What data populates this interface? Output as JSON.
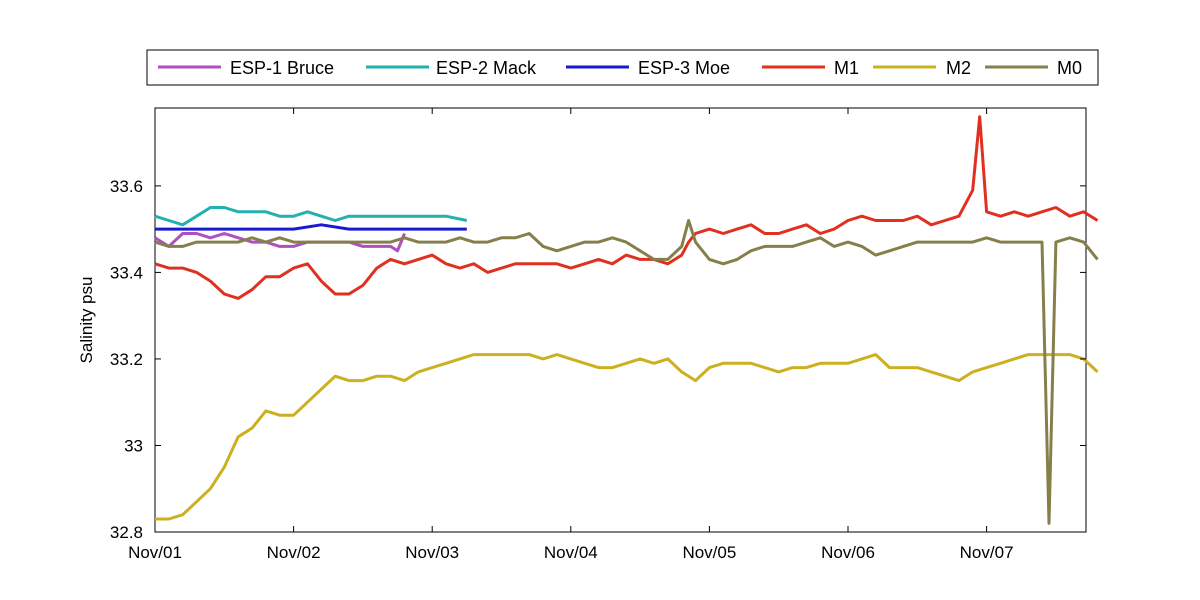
{
  "chart_data": {
    "type": "line",
    "title": "",
    "xlabel": "",
    "ylabel": "Salinity psu",
    "xlim": [
      "Nov/01",
      "Nov/07 ~19:00"
    ],
    "ylim": [
      32.8,
      33.78
    ],
    "x_tick_labels": [
      "Nov/01",
      "Nov/02",
      "Nov/03",
      "Nov/04",
      "Nov/05",
      "Nov/06",
      "Nov/07"
    ],
    "y_ticks": [
      32.8,
      33.0,
      33.2,
      33.4,
      33.6
    ],
    "y_tick_labels": [
      "32.8",
      "33",
      "33.2",
      "33.4",
      "33.6"
    ],
    "grid": false,
    "legend_position": "top, horizontal",
    "series": [
      {
        "name": "ESP-1 Bruce",
        "color": "#b04fc0",
        "x": [
          0.0,
          0.1,
          0.2,
          0.3,
          0.4,
          0.5,
          0.6,
          0.7,
          0.8,
          0.9,
          1.0,
          1.1,
          1.2,
          1.3,
          1.4,
          1.5,
          1.6,
          1.7,
          1.75,
          1.8
        ],
        "y": [
          33.48,
          33.46,
          33.49,
          33.49,
          33.48,
          33.49,
          33.48,
          33.47,
          33.47,
          33.46,
          33.46,
          33.47,
          33.47,
          33.47,
          33.47,
          33.46,
          33.46,
          33.46,
          33.45,
          33.49
        ]
      },
      {
        "name": "ESP-2 Mack",
        "color": "#22b0b0",
        "x": [
          0.0,
          0.1,
          0.2,
          0.3,
          0.4,
          0.5,
          0.6,
          0.7,
          0.8,
          0.9,
          1.0,
          1.1,
          1.2,
          1.3,
          1.4,
          1.5,
          1.6,
          1.7,
          1.8,
          1.9,
          2.0,
          2.1,
          2.25
        ],
        "y": [
          33.53,
          33.52,
          33.51,
          33.53,
          33.55,
          33.55,
          33.54,
          33.54,
          33.54,
          33.53,
          33.53,
          33.54,
          33.53,
          33.52,
          33.53,
          33.53,
          33.53,
          33.53,
          33.53,
          33.53,
          33.53,
          33.53,
          33.52
        ]
      },
      {
        "name": "ESP-3 Moe",
        "color": "#1a1ad0",
        "x": [
          0.0,
          0.2,
          0.4,
          0.6,
          0.8,
          1.0,
          1.2,
          1.4,
          1.6,
          1.8,
          2.0,
          2.25
        ],
        "y": [
          33.5,
          33.5,
          33.5,
          33.5,
          33.5,
          33.5,
          33.51,
          33.5,
          33.5,
          33.5,
          33.5,
          33.5
        ]
      },
      {
        "name": "M1",
        "color": "#e03020",
        "x": [
          0.0,
          0.1,
          0.2,
          0.3,
          0.4,
          0.5,
          0.6,
          0.7,
          0.8,
          0.9,
          1.0,
          1.1,
          1.2,
          1.3,
          1.4,
          1.5,
          1.6,
          1.7,
          1.8,
          1.9,
          2.0,
          2.1,
          2.2,
          2.3,
          2.4,
          2.5,
          2.6,
          2.7,
          2.8,
          2.9,
          3.0,
          3.1,
          3.2,
          3.3,
          3.4,
          3.5,
          3.6,
          3.7,
          3.8,
          3.85,
          3.9,
          4.0,
          4.1,
          4.2,
          4.3,
          4.4,
          4.5,
          4.6,
          4.7,
          4.8,
          4.9,
          5.0,
          5.1,
          5.2,
          5.3,
          5.4,
          5.5,
          5.6,
          5.7,
          5.8,
          5.9,
          5.95,
          6.0,
          6.1,
          6.2,
          6.3,
          6.4,
          6.5,
          6.6,
          6.7,
          6.8
        ],
        "y": [
          33.42,
          33.41,
          33.41,
          33.4,
          33.38,
          33.35,
          33.34,
          33.36,
          33.39,
          33.39,
          33.41,
          33.42,
          33.38,
          33.35,
          33.35,
          33.37,
          33.41,
          33.43,
          33.42,
          33.43,
          33.44,
          33.42,
          33.41,
          33.42,
          33.4,
          33.41,
          33.42,
          33.42,
          33.42,
          33.42,
          33.41,
          33.42,
          33.43,
          33.42,
          33.44,
          33.43,
          33.43,
          33.42,
          33.44,
          33.47,
          33.49,
          33.5,
          33.49,
          33.5,
          33.51,
          33.49,
          33.49,
          33.5,
          33.51,
          33.49,
          33.5,
          33.52,
          33.53,
          33.52,
          33.52,
          33.52,
          33.53,
          33.51,
          33.52,
          33.53,
          33.59,
          33.76,
          33.54,
          33.53,
          33.54,
          33.53,
          33.54,
          33.55,
          33.53,
          33.54,
          33.52
        ]
      },
      {
        "name": "M2",
        "color": "#ccb020",
        "x": [
          0.0,
          0.1,
          0.2,
          0.3,
          0.4,
          0.5,
          0.6,
          0.7,
          0.8,
          0.9,
          1.0,
          1.1,
          1.2,
          1.3,
          1.4,
          1.5,
          1.6,
          1.7,
          1.8,
          1.9,
          2.0,
          2.1,
          2.2,
          2.3,
          2.4,
          2.5,
          2.6,
          2.7,
          2.8,
          2.9,
          3.0,
          3.1,
          3.2,
          3.3,
          3.4,
          3.5,
          3.6,
          3.7,
          3.8,
          3.9,
          4.0,
          4.1,
          4.2,
          4.3,
          4.4,
          4.5,
          4.6,
          4.7,
          4.8,
          4.9,
          5.0,
          5.1,
          5.2,
          5.3,
          5.4,
          5.5,
          5.6,
          5.7,
          5.8,
          5.9,
          6.0,
          6.1,
          6.2,
          6.3,
          6.4,
          6.5,
          6.6,
          6.7,
          6.8
        ],
        "y": [
          32.83,
          32.83,
          32.84,
          32.87,
          32.9,
          32.95,
          33.02,
          33.04,
          33.08,
          33.07,
          33.07,
          33.1,
          33.13,
          33.16,
          33.15,
          33.15,
          33.16,
          33.16,
          33.15,
          33.17,
          33.18,
          33.19,
          33.2,
          33.21,
          33.21,
          33.21,
          33.21,
          33.21,
          33.2,
          33.21,
          33.2,
          33.19,
          33.18,
          33.18,
          33.19,
          33.2,
          33.19,
          33.2,
          33.17,
          33.15,
          33.18,
          33.19,
          33.19,
          33.19,
          33.18,
          33.17,
          33.18,
          33.18,
          33.19,
          33.19,
          33.19,
          33.2,
          33.21,
          33.18,
          33.18,
          33.18,
          33.17,
          33.16,
          33.15,
          33.17,
          33.18,
          33.19,
          33.2,
          33.21,
          33.21,
          33.21,
          33.21,
          33.2,
          33.17
        ]
      },
      {
        "name": "M0",
        "color": "#857f4a",
        "x": [
          0.0,
          0.1,
          0.2,
          0.3,
          0.4,
          0.5,
          0.6,
          0.7,
          0.8,
          0.9,
          1.0,
          1.1,
          1.2,
          1.3,
          1.4,
          1.5,
          1.6,
          1.7,
          1.8,
          1.9,
          2.0,
          2.1,
          2.2,
          2.3,
          2.4,
          2.5,
          2.6,
          2.7,
          2.8,
          2.9,
          3.0,
          3.1,
          3.2,
          3.3,
          3.4,
          3.5,
          3.6,
          3.7,
          3.8,
          3.85,
          3.9,
          4.0,
          4.1,
          4.2,
          4.3,
          4.4,
          4.5,
          4.6,
          4.7,
          4.8,
          4.9,
          5.0,
          5.1,
          5.2,
          5.3,
          5.4,
          5.5,
          5.6,
          5.7,
          5.8,
          5.9,
          6.0,
          6.1,
          6.2,
          6.3,
          6.4,
          6.45,
          6.5,
          6.6,
          6.7,
          6.8
        ],
        "y": [
          33.47,
          33.46,
          33.46,
          33.47,
          33.47,
          33.47,
          33.47,
          33.48,
          33.47,
          33.48,
          33.47,
          33.47,
          33.47,
          33.47,
          33.47,
          33.47,
          33.47,
          33.47,
          33.48,
          33.47,
          33.47,
          33.47,
          33.48,
          33.47,
          33.47,
          33.48,
          33.48,
          33.49,
          33.46,
          33.45,
          33.46,
          33.47,
          33.47,
          33.48,
          33.47,
          33.45,
          33.43,
          33.43,
          33.46,
          33.52,
          33.47,
          33.43,
          33.42,
          33.43,
          33.45,
          33.46,
          33.46,
          33.46,
          33.47,
          33.48,
          33.46,
          33.47,
          33.46,
          33.44,
          33.45,
          33.46,
          33.47,
          33.47,
          33.47,
          33.47,
          33.47,
          33.48,
          33.47,
          33.47,
          33.47,
          33.47,
          32.82,
          33.47,
          33.48,
          33.47,
          33.43
        ]
      }
    ]
  }
}
